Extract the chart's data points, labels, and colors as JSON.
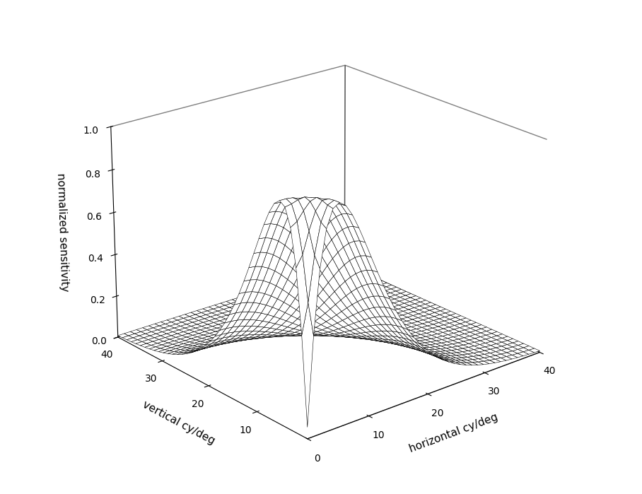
{
  "xlabel": "horizontal cy/deg",
  "ylabel": "vertical cy/deg",
  "zlabel": "normalized sensitivity",
  "xlim": [
    0,
    40
  ],
  "ylim": [
    0,
    40
  ],
  "zlim": [
    0.0,
    1.0
  ],
  "xticks": [
    0,
    10,
    20,
    30,
    40
  ],
  "yticks": [
    10,
    20,
    30,
    40
  ],
  "zticks": [
    0.0,
    0.2,
    0.4,
    0.6,
    0.8,
    1.0
  ],
  "peak_freq": 5.0,
  "surface_color": "white",
  "edge_color": "black",
  "linewidth": 0.4,
  "n_points": 40,
  "elev": 22,
  "azim": -130,
  "figsize": [
    9.08,
    6.99
  ],
  "dpi": 100
}
